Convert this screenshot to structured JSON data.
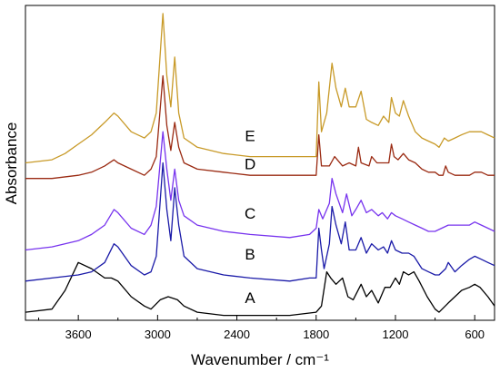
{
  "chart_data": {
    "type": "line",
    "title": "",
    "xlabel": "Wavenumber / cm⁻¹",
    "ylabel": "Absorbance",
    "xlim": [
      4000,
      450
    ],
    "x_reversed": true,
    "xticks": [
      3600,
      3000,
      2400,
      1800,
      1200,
      600
    ],
    "ylim": [
      0,
      1
    ],
    "yticks_shown": false,
    "grid": false,
    "legend": "none",
    "series": [
      {
        "name": "A",
        "color": "#000000",
        "points": [
          [
            4000,
            0.02
          ],
          [
            3800,
            0.03
          ],
          [
            3700,
            0.09
          ],
          [
            3600,
            0.18
          ],
          [
            3500,
            0.16
          ],
          [
            3400,
            0.13
          ],
          [
            3350,
            0.13
          ],
          [
            3300,
            0.12
          ],
          [
            3200,
            0.07
          ],
          [
            3100,
            0.04
          ],
          [
            3050,
            0.03
          ],
          [
            2980,
            0.06
          ],
          [
            2920,
            0.07
          ],
          [
            2850,
            0.06
          ],
          [
            2800,
            0.04
          ],
          [
            2700,
            0.02
          ],
          [
            2500,
            0.01
          ],
          [
            2300,
            0.01
          ],
          [
            2000,
            0.01
          ],
          [
            1800,
            0.02
          ],
          [
            1760,
            0.04
          ],
          [
            1720,
            0.15
          ],
          [
            1690,
            0.13
          ],
          [
            1650,
            0.11
          ],
          [
            1600,
            0.13
          ],
          [
            1560,
            0.07
          ],
          [
            1520,
            0.06
          ],
          [
            1460,
            0.11
          ],
          [
            1420,
            0.07
          ],
          [
            1380,
            0.09
          ],
          [
            1330,
            0.05
          ],
          [
            1280,
            0.1
          ],
          [
            1240,
            0.1
          ],
          [
            1200,
            0.13
          ],
          [
            1170,
            0.11
          ],
          [
            1140,
            0.15
          ],
          [
            1100,
            0.14
          ],
          [
            1060,
            0.15
          ],
          [
            1020,
            0.12
          ],
          [
            960,
            0.07
          ],
          [
            900,
            0.03
          ],
          [
            870,
            0.02
          ],
          [
            800,
            0.05
          ],
          [
            700,
            0.09
          ],
          [
            640,
            0.1
          ],
          [
            600,
            0.11
          ],
          [
            560,
            0.1
          ],
          [
            500,
            0.07
          ],
          [
            450,
            0.04
          ]
        ]
      },
      {
        "name": "B",
        "color": "#1a1aa8",
        "points": [
          [
            4000,
            0.12
          ],
          [
            3800,
            0.13
          ],
          [
            3600,
            0.14
          ],
          [
            3500,
            0.15
          ],
          [
            3400,
            0.18
          ],
          [
            3330,
            0.24
          ],
          [
            3300,
            0.23
          ],
          [
            3200,
            0.17
          ],
          [
            3100,
            0.14
          ],
          [
            3050,
            0.15
          ],
          [
            3010,
            0.2
          ],
          [
            2960,
            0.5
          ],
          [
            2930,
            0.35
          ],
          [
            2900,
            0.25
          ],
          [
            2870,
            0.42
          ],
          [
            2840,
            0.3
          ],
          [
            2800,
            0.2
          ],
          [
            2700,
            0.16
          ],
          [
            2500,
            0.14
          ],
          [
            2300,
            0.13
          ],
          [
            2000,
            0.12
          ],
          [
            1850,
            0.13
          ],
          [
            1800,
            0.13
          ],
          [
            1780,
            0.29
          ],
          [
            1760,
            0.22
          ],
          [
            1740,
            0.16
          ],
          [
            1700,
            0.24
          ],
          [
            1680,
            0.36
          ],
          [
            1650,
            0.3
          ],
          [
            1610,
            0.24
          ],
          [
            1580,
            0.31
          ],
          [
            1550,
            0.22
          ],
          [
            1500,
            0.22
          ],
          [
            1460,
            0.26
          ],
          [
            1420,
            0.21
          ],
          [
            1380,
            0.24
          ],
          [
            1330,
            0.22
          ],
          [
            1290,
            0.23
          ],
          [
            1260,
            0.21
          ],
          [
            1230,
            0.25
          ],
          [
            1200,
            0.22
          ],
          [
            1150,
            0.21
          ],
          [
            1100,
            0.21
          ],
          [
            1060,
            0.2
          ],
          [
            1000,
            0.16
          ],
          [
            950,
            0.15
          ],
          [
            900,
            0.14
          ],
          [
            870,
            0.14
          ],
          [
            820,
            0.16
          ],
          [
            800,
            0.18
          ],
          [
            750,
            0.15
          ],
          [
            700,
            0.17
          ],
          [
            640,
            0.19
          ],
          [
            600,
            0.2
          ],
          [
            550,
            0.19
          ],
          [
            500,
            0.18
          ],
          [
            450,
            0.17
          ]
        ]
      },
      {
        "name": "C",
        "color": "#7733ee",
        "points": [
          [
            4000,
            0.22
          ],
          [
            3800,
            0.23
          ],
          [
            3600,
            0.25
          ],
          [
            3500,
            0.27
          ],
          [
            3400,
            0.3
          ],
          [
            3330,
            0.35
          ],
          [
            3300,
            0.34
          ],
          [
            3200,
            0.29
          ],
          [
            3100,
            0.27
          ],
          [
            3050,
            0.3
          ],
          [
            3010,
            0.36
          ],
          [
            2960,
            0.6
          ],
          [
            2930,
            0.48
          ],
          [
            2900,
            0.38
          ],
          [
            2870,
            0.48
          ],
          [
            2840,
            0.38
          ],
          [
            2800,
            0.33
          ],
          [
            2700,
            0.3
          ],
          [
            2500,
            0.28
          ],
          [
            2300,
            0.27
          ],
          [
            2000,
            0.26
          ],
          [
            1850,
            0.27
          ],
          [
            1800,
            0.29
          ],
          [
            1780,
            0.35
          ],
          [
            1750,
            0.32
          ],
          [
            1700,
            0.37
          ],
          [
            1680,
            0.45
          ],
          [
            1650,
            0.4
          ],
          [
            1600,
            0.34
          ],
          [
            1570,
            0.4
          ],
          [
            1530,
            0.33
          ],
          [
            1500,
            0.35
          ],
          [
            1460,
            0.38
          ],
          [
            1420,
            0.34
          ],
          [
            1380,
            0.35
          ],
          [
            1330,
            0.33
          ],
          [
            1300,
            0.34
          ],
          [
            1260,
            0.32
          ],
          [
            1230,
            0.34
          ],
          [
            1200,
            0.33
          ],
          [
            1150,
            0.32
          ],
          [
            1100,
            0.31
          ],
          [
            1050,
            0.3
          ],
          [
            1000,
            0.29
          ],
          [
            950,
            0.28
          ],
          [
            900,
            0.28
          ],
          [
            850,
            0.29
          ],
          [
            800,
            0.3
          ],
          [
            750,
            0.3
          ],
          [
            700,
            0.3
          ],
          [
            640,
            0.3
          ],
          [
            600,
            0.31
          ],
          [
            550,
            0.3
          ],
          [
            500,
            0.29
          ],
          [
            450,
            0.28
          ]
        ]
      },
      {
        "name": "D",
        "color": "#9a2a12",
        "points": [
          [
            4000,
            0.45
          ],
          [
            3800,
            0.45
          ],
          [
            3600,
            0.46
          ],
          [
            3500,
            0.47
          ],
          [
            3400,
            0.49
          ],
          [
            3330,
            0.51
          ],
          [
            3300,
            0.5
          ],
          [
            3200,
            0.48
          ],
          [
            3100,
            0.46
          ],
          [
            3050,
            0.48
          ],
          [
            3010,
            0.52
          ],
          [
            2960,
            0.78
          ],
          [
            2930,
            0.62
          ],
          [
            2900,
            0.54
          ],
          [
            2870,
            0.63
          ],
          [
            2840,
            0.55
          ],
          [
            2800,
            0.5
          ],
          [
            2700,
            0.48
          ],
          [
            2500,
            0.47
          ],
          [
            2300,
            0.46
          ],
          [
            2000,
            0.46
          ],
          [
            1850,
            0.46
          ],
          [
            1800,
            0.46
          ],
          [
            1780,
            0.59
          ],
          [
            1760,
            0.49
          ],
          [
            1700,
            0.49
          ],
          [
            1660,
            0.52
          ],
          [
            1600,
            0.49
          ],
          [
            1550,
            0.5
          ],
          [
            1500,
            0.49
          ],
          [
            1480,
            0.55
          ],
          [
            1460,
            0.5
          ],
          [
            1400,
            0.49
          ],
          [
            1380,
            0.52
          ],
          [
            1340,
            0.5
          ],
          [
            1300,
            0.5
          ],
          [
            1250,
            0.5
          ],
          [
            1230,
            0.56
          ],
          [
            1210,
            0.52
          ],
          [
            1180,
            0.51
          ],
          [
            1140,
            0.53
          ],
          [
            1100,
            0.51
          ],
          [
            1050,
            0.5
          ],
          [
            1000,
            0.48
          ],
          [
            950,
            0.47
          ],
          [
            900,
            0.47
          ],
          [
            870,
            0.46
          ],
          [
            840,
            0.46
          ],
          [
            820,
            0.49
          ],
          [
            800,
            0.47
          ],
          [
            750,
            0.46
          ],
          [
            700,
            0.46
          ],
          [
            640,
            0.46
          ],
          [
            600,
            0.47
          ],
          [
            550,
            0.47
          ],
          [
            500,
            0.46
          ],
          [
            450,
            0.46
          ]
        ]
      },
      {
        "name": "E",
        "color": "#c89a28",
        "points": [
          [
            4000,
            0.5
          ],
          [
            3800,
            0.51
          ],
          [
            3700,
            0.53
          ],
          [
            3600,
            0.56
          ],
          [
            3500,
            0.59
          ],
          [
            3400,
            0.63
          ],
          [
            3330,
            0.66
          ],
          [
            3300,
            0.65
          ],
          [
            3200,
            0.6
          ],
          [
            3100,
            0.58
          ],
          [
            3050,
            0.6
          ],
          [
            3010,
            0.66
          ],
          [
            2960,
            0.98
          ],
          [
            2930,
            0.78
          ],
          [
            2900,
            0.68
          ],
          [
            2870,
            0.84
          ],
          [
            2840,
            0.66
          ],
          [
            2800,
            0.58
          ],
          [
            2700,
            0.55
          ],
          [
            2500,
            0.53
          ],
          [
            2300,
            0.52
          ],
          [
            2000,
            0.52
          ],
          [
            1850,
            0.52
          ],
          [
            1800,
            0.52
          ],
          [
            1780,
            0.76
          ],
          [
            1760,
            0.6
          ],
          [
            1720,
            0.66
          ],
          [
            1700,
            0.74
          ],
          [
            1680,
            0.82
          ],
          [
            1650,
            0.74
          ],
          [
            1610,
            0.68
          ],
          [
            1580,
            0.74
          ],
          [
            1550,
            0.68
          ],
          [
            1500,
            0.68
          ],
          [
            1460,
            0.73
          ],
          [
            1420,
            0.64
          ],
          [
            1380,
            0.63
          ],
          [
            1330,
            0.62
          ],
          [
            1290,
            0.65
          ],
          [
            1250,
            0.63
          ],
          [
            1230,
            0.71
          ],
          [
            1200,
            0.66
          ],
          [
            1170,
            0.65
          ],
          [
            1140,
            0.7
          ],
          [
            1100,
            0.65
          ],
          [
            1050,
            0.6
          ],
          [
            1000,
            0.58
          ],
          [
            950,
            0.57
          ],
          [
            900,
            0.56
          ],
          [
            870,
            0.55
          ],
          [
            830,
            0.58
          ],
          [
            800,
            0.57
          ],
          [
            750,
            0.58
          ],
          [
            700,
            0.59
          ],
          [
            640,
            0.6
          ],
          [
            600,
            0.6
          ],
          [
            550,
            0.6
          ],
          [
            500,
            0.59
          ],
          [
            450,
            0.58
          ]
        ]
      }
    ],
    "series_labels": [
      {
        "text": "A",
        "x": 2300,
        "y": 0.05
      },
      {
        "text": "B",
        "x": 2300,
        "y": 0.19
      },
      {
        "text": "C",
        "x": 2300,
        "y": 0.32
      },
      {
        "text": "D",
        "x": 2300,
        "y": 0.48
      },
      {
        "text": "E",
        "x": 2300,
        "y": 0.57
      }
    ]
  }
}
